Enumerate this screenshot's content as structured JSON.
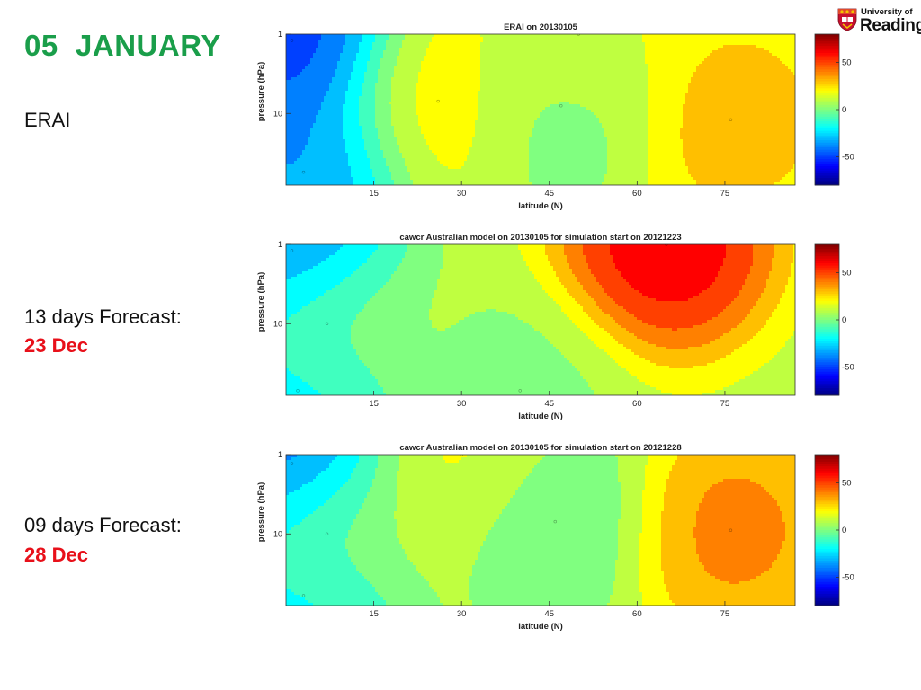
{
  "slide": {
    "title": "05  JANUARY",
    "title_color": "#1a9e4a",
    "date_color": "#e8101a",
    "labels": [
      {
        "text": "ERAI",
        "date": ""
      },
      {
        "text": "13 days Forecast:",
        "date": "23 Dec"
      },
      {
        "text": "09 days Forecast:",
        "date": "28 Dec"
      }
    ]
  },
  "logo": {
    "line1": "University of",
    "line2": "Reading",
    "shield_icon": "university-shield-icon",
    "colors": {
      "shield_red": "#c8102e",
      "shield_gold": "#f3c300"
    }
  },
  "chart_data": [
    {
      "type": "contour",
      "title": "ERAI on 20130105",
      "xlabel": "latitude (N)",
      "ylabel": "pressure (hPa)",
      "xlim": [
        0,
        87
      ],
      "ylim": [
        1,
        10
      ],
      "y_scale": "log",
      "xticks": [
        15,
        30,
        45,
        60,
        75
      ],
      "yticks": [
        1,
        10
      ],
      "colorbar": {
        "ticks": [
          50,
          0,
          -50
        ],
        "range": [
          -80,
          80
        ],
        "colormap": "jet"
      },
      "features": [
        {
          "kind": "min",
          "lat": 1,
          "p": 1.2,
          "value": -65
        },
        {
          "kind": "min",
          "lat": 3,
          "p": 55,
          "value": -45
        },
        {
          "kind": "max",
          "lat": 26,
          "p": 7,
          "value": 25
        },
        {
          "kind": "min",
          "lat": 47,
          "p": 8,
          "value": -5
        },
        {
          "kind": "max",
          "lat": 76,
          "p": 12,
          "value": 35
        },
        {
          "kind": "max",
          "lat": 50,
          "p": 1,
          "value": 20
        }
      ]
    },
    {
      "type": "contour",
      "title": "cawcr Australian model on 20130105 for simulation start on 20121223",
      "xlabel": "latitude (N)",
      "ylabel": "pressure (hPa)",
      "xlim": [
        0,
        87
      ],
      "ylim": [
        1,
        10
      ],
      "y_scale": "log",
      "xticks": [
        15,
        30,
        45,
        60,
        75
      ],
      "yticks": [
        1,
        10
      ],
      "colorbar": {
        "ticks": [
          50,
          0,
          -50
        ],
        "range": [
          -80,
          80
        ],
        "colormap": "jet"
      },
      "features": [
        {
          "kind": "min",
          "lat": 1,
          "p": 1.2,
          "value": -60
        },
        {
          "kind": "min",
          "lat": 2,
          "p": 70,
          "value": -35
        },
        {
          "kind": "max",
          "lat": 65,
          "p": 1,
          "value": 75
        },
        {
          "kind": "max",
          "lat": 7,
          "p": 10,
          "value": 15
        },
        {
          "kind": "min",
          "lat": 40,
          "p": 70,
          "value": 0
        }
      ]
    },
    {
      "type": "contour",
      "title": "cawcr Australian model on 20130105 for simulation start on 20121228",
      "xlabel": "latitude (N)",
      "ylabel": "pressure (hPa)",
      "xlim": [
        0,
        87
      ],
      "ylim": [
        1,
        10
      ],
      "y_scale": "log",
      "xticks": [
        15,
        30,
        45,
        60,
        75
      ],
      "yticks": [
        1,
        10
      ],
      "colorbar": {
        "ticks": [
          50,
          0,
          -50
        ],
        "range": [
          -80,
          80
        ],
        "colormap": "jet"
      },
      "features": [
        {
          "kind": "min",
          "lat": 1,
          "p": 1.3,
          "value": -65
        },
        {
          "kind": "min",
          "lat": 3,
          "p": 60,
          "value": -35
        },
        {
          "kind": "max",
          "lat": 76,
          "p": 9,
          "value": 45
        },
        {
          "kind": "min",
          "lat": 46,
          "p": 7,
          "value": -8
        },
        {
          "kind": "max",
          "lat": 7,
          "p": 10,
          "value": 20
        },
        {
          "kind": "max",
          "lat": 30,
          "p": 1,
          "value": 20
        }
      ]
    }
  ]
}
